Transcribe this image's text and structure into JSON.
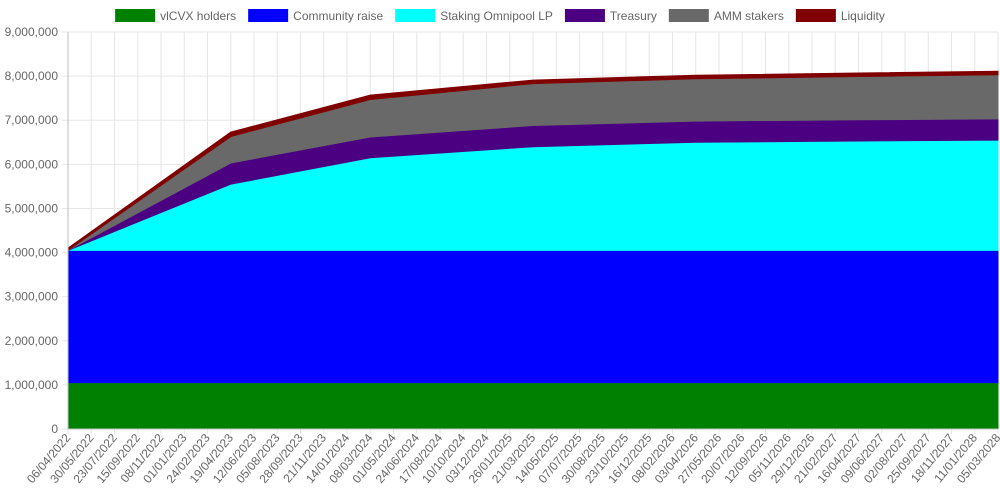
{
  "chart_data": {
    "type": "area",
    "stacked": true,
    "legend_position": "top",
    "grid": true,
    "ylim": [
      0,
      9000000
    ],
    "y_ticks": [
      "0",
      "1,000,000",
      "2,000,000",
      "3,000,000",
      "4,000,000",
      "5,000,000",
      "6,000,000",
      "7,000,000",
      "8,000,000",
      "9,000,000"
    ],
    "x_tick_labels": [
      "06/04/2022",
      "30/05/2022",
      "23/07/2022",
      "15/09/2022",
      "08/11/2022",
      "01/01/2023",
      "24/02/2023",
      "19/04/2023",
      "12/06/2023",
      "05/08/2023",
      "28/09/2023",
      "21/11/2023",
      "14/01/2024",
      "08/03/2024",
      "01/05/2024",
      "24/06/2024",
      "17/08/2024",
      "10/10/2024",
      "03/12/2024",
      "26/01/2025",
      "21/03/2025",
      "14/05/2025",
      "07/07/2025",
      "30/08/2025",
      "23/10/2025",
      "16/12/2025",
      "08/02/2026",
      "03/04/2026",
      "27/05/2026",
      "20/07/2026",
      "12/09/2026",
      "05/11/2026",
      "29/12/2026",
      "21/02/2027",
      "16/04/2027",
      "09/06/2027",
      "02/08/2027",
      "25/09/2027",
      "18/11/2027",
      "11/01/2028",
      "05/03/2028"
    ],
    "x": [
      "06/04/2022",
      "19/04/2023",
      "08/03/2024",
      "21/03/2025",
      "03/04/2026",
      "16/04/2027",
      "05/03/2028"
    ],
    "series": [
      {
        "name": "vlCVX holders",
        "color": "#008000",
        "values": [
          1050000,
          1050000,
          1050000,
          1050000,
          1050000,
          1050000,
          1050000
        ]
      },
      {
        "name": "Community raise",
        "color": "#0000ff",
        "values": [
          3000000,
          3000000,
          3000000,
          3000000,
          3000000,
          3000000,
          3000000
        ]
      },
      {
        "name": "Staking Omnipool LP",
        "color": "#00ffff",
        "values": [
          0,
          1500000,
          2100000,
          2350000,
          2450000,
          2480000,
          2500000
        ]
      },
      {
        "name": "Treasury",
        "color": "#4b0082",
        "values": [
          0,
          480000,
          470000,
          480000,
          480000,
          480000,
          480000
        ]
      },
      {
        "name": "AMM stakers",
        "color": "#696969",
        "values": [
          0,
          600000,
          850000,
          950000,
          960000,
          980000,
          1000000
        ]
      },
      {
        "name": "Liquidity",
        "color": "#800000",
        "values": [
          50000,
          100000,
          100000,
          80000,
          80000,
          80000,
          80000
        ]
      }
    ]
  }
}
